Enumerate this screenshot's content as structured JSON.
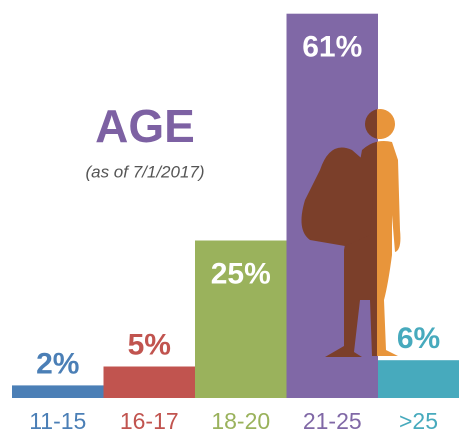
{
  "chart_data": {
    "type": "bar",
    "title": "AGE",
    "subtitle": "(as of 7/1/2017)",
    "categories": [
      "11-15",
      "16-17",
      "18-20",
      "21-25",
      ">25"
    ],
    "values": [
      2,
      5,
      25,
      61,
      6
    ],
    "value_labels": [
      "2%",
      "5%",
      "25%",
      "61%",
      "6%"
    ],
    "colors": [
      "#4b7fb6",
      "#c1544f",
      "#9ab25c",
      "#8068a6",
      "#47aabd"
    ]
  }
}
